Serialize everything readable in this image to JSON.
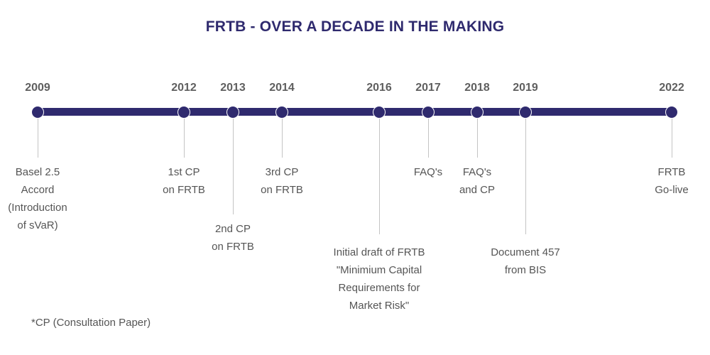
{
  "title": "FRTB - OVER A DECADE IN THE MAKING",
  "accent_color": "#2f2a6e",
  "milestones": [
    {
      "year": "2009",
      "label_lines": [
        "Basel 2.5",
        "Accord",
        "(Introduction",
        "of sVaR)"
      ]
    },
    {
      "year": "2012",
      "label_lines": [
        "1st CP",
        "on FRTB"
      ]
    },
    {
      "year": "2013",
      "label_lines": [
        "2nd CP",
        "on FRTB"
      ]
    },
    {
      "year": "2014",
      "label_lines": [
        "3rd CP",
        "on FRTB"
      ]
    },
    {
      "year": "2016",
      "label_lines": [
        "Initial draft of FRTB",
        "\"Minimium Capital",
        "Requirements for",
        "Market Risk\""
      ]
    },
    {
      "year": "2017",
      "label_lines": [
        "FAQ's"
      ]
    },
    {
      "year": "2018",
      "label_lines": [
        "FAQ's",
        "and CP"
      ]
    },
    {
      "year": "2019",
      "label_lines": [
        "Document 457",
        "from BIS"
      ]
    },
    {
      "year": "2022",
      "label_lines": [
        "FRTB",
        "Go-live"
      ]
    }
  ],
  "footnote": "*CP (Consultation Paper)"
}
